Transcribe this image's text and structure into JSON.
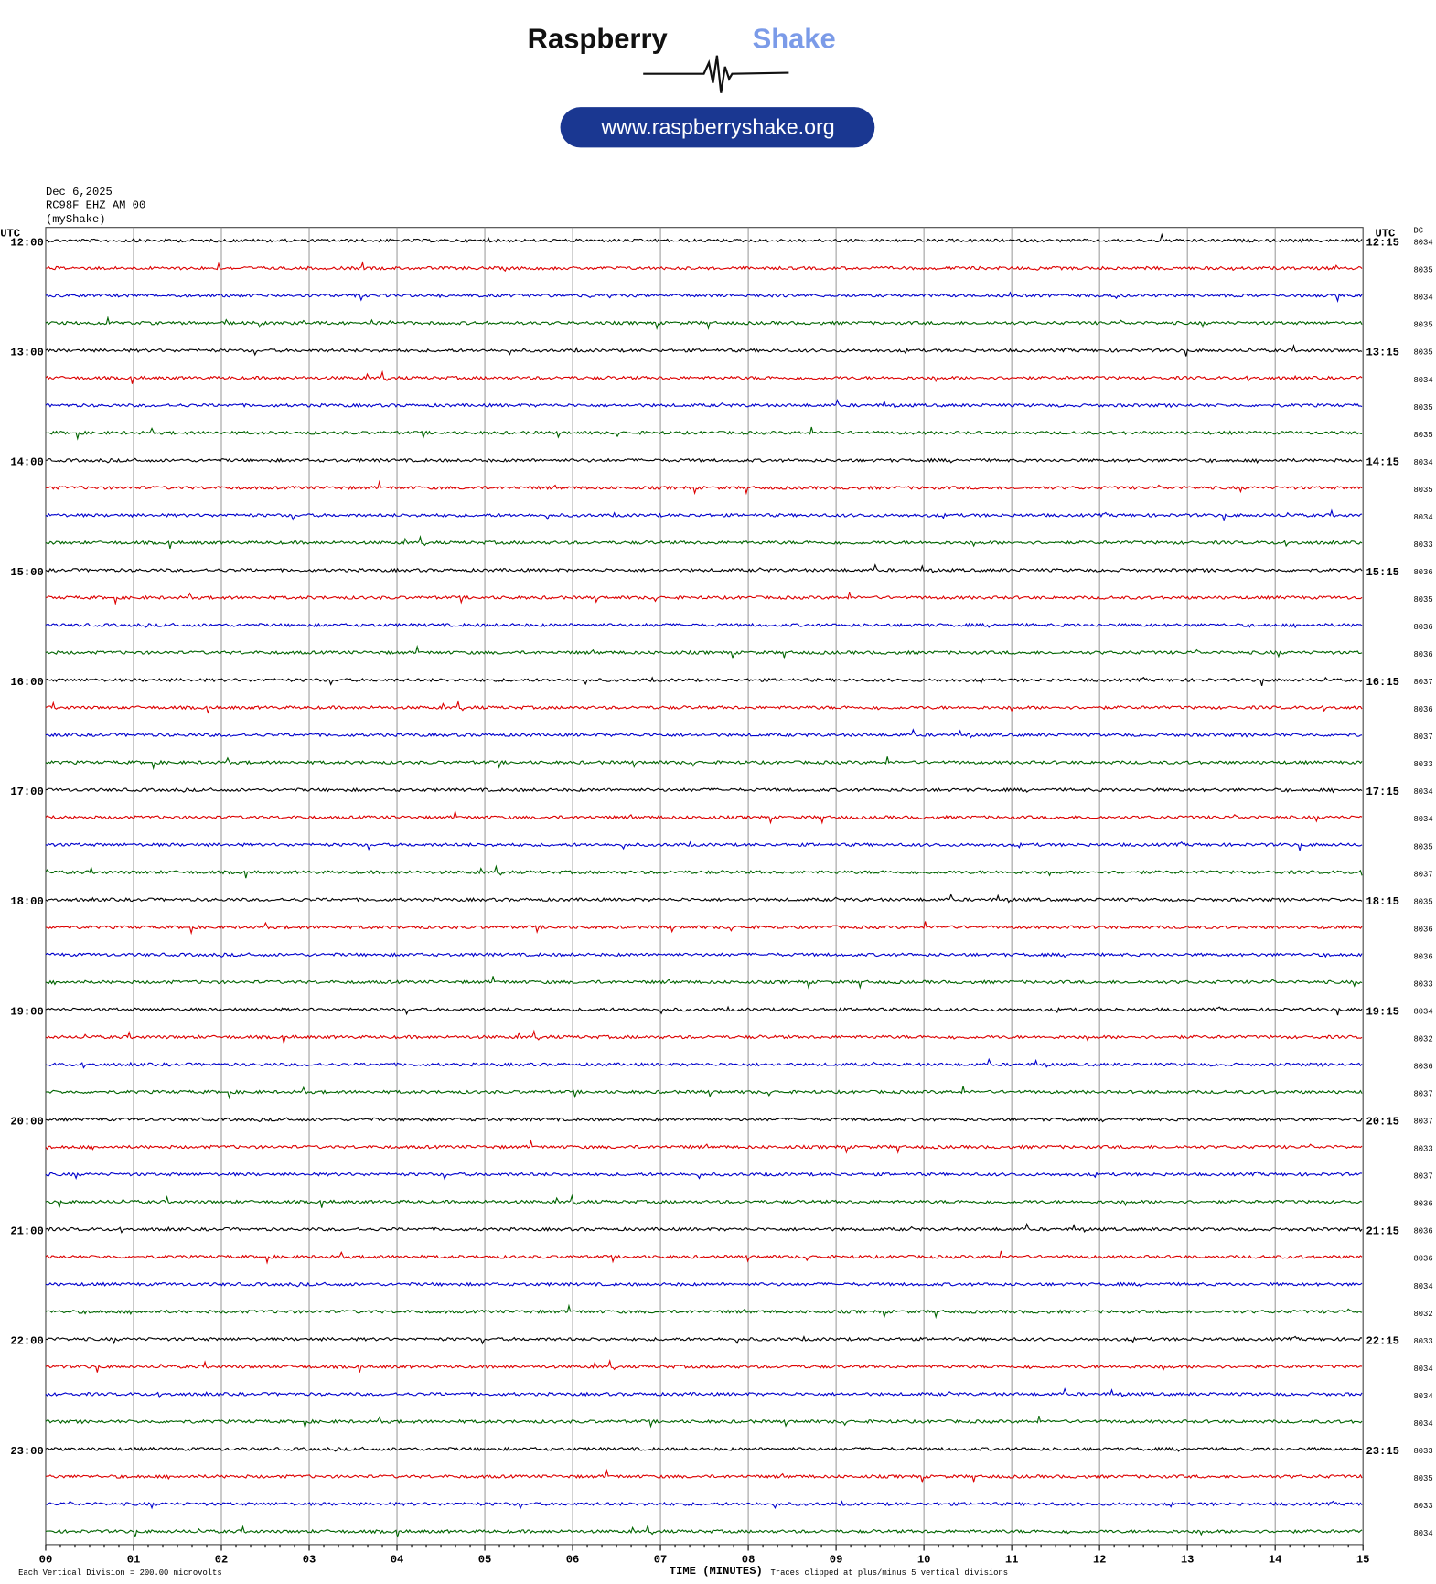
{
  "logo": {
    "word1": "Raspberry",
    "word2": "Shake",
    "url": "www.raspberryshake.org"
  },
  "header": {
    "date": "Dec 6,2025",
    "station": "RC98F EHZ AM 00",
    "source": "(myShake)"
  },
  "plot": {
    "left_axis_title": "UTC",
    "right_axis_title": "UTC",
    "dc_title": "DC",
    "left_hours": [
      "12:00",
      "13:00",
      "14:00",
      "15:00",
      "16:00",
      "17:00",
      "18:00",
      "19:00",
      "20:00",
      "21:00",
      "22:00",
      "23:00"
    ],
    "right_hours": [
      "12:15",
      "13:15",
      "14:15",
      "15:15",
      "16:15",
      "17:15",
      "18:15",
      "19:15",
      "20:15",
      "21:15",
      "22:15",
      "23:15"
    ],
    "dc_values": [
      8034,
      8035,
      8034,
      8035,
      8035,
      8034,
      8035,
      8035,
      8034,
      8035,
      8034,
      8033,
      8036,
      8035,
      8036,
      8036,
      8037,
      8036,
      8037,
      8033,
      8034,
      8034,
      8035,
      8037,
      8035,
      8036,
      8036,
      8033,
      8034,
      8032,
      8036,
      8037,
      8037,
      8033,
      8037,
      8036,
      8036,
      8036,
      8034,
      8032,
      8033,
      8034,
      8034,
      8034,
      8033,
      8035,
      8033,
      8034
    ],
    "trace_colors": [
      "#000000",
      "#dd0000",
      "#0000cc",
      "#006400"
    ],
    "minute_labels": [
      "00",
      "01",
      "02",
      "03",
      "04",
      "05",
      "06",
      "07",
      "08",
      "09",
      "10",
      "11",
      "12",
      "13",
      "14",
      "15"
    ],
    "x_axis_title": "TIME (MINUTES)",
    "scale_note": "Each Vertical Division =  200.00 microvolts",
    "clip_note": "Traces clipped at plus/minus 5 vertical divisions"
  }
}
